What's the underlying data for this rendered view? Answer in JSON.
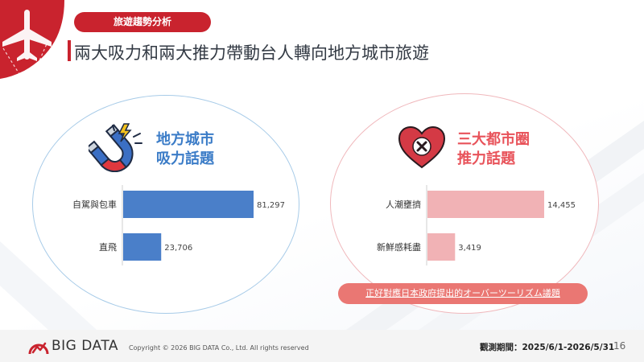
{
  "header": {
    "tag": "旅遊趨勢分析",
    "title": "兩大吸力和兩大推力帶動台人轉向地方城市旅遊"
  },
  "left_panel": {
    "heading_line1": "地方城市",
    "heading_line2": "吸力話題",
    "icon": "magnet-icon",
    "color": "#4a7fc9"
  },
  "right_panel": {
    "heading_line1": "三大都市圈",
    "heading_line2": "推力話題",
    "icon": "heart-x-icon",
    "color": "#f1b2b5"
  },
  "chart_data": [
    {
      "type": "bar",
      "orientation": "horizontal",
      "categories": [
        "自駕與包車",
        "直飛"
      ],
      "values": [
        81297,
        23706
      ],
      "value_labels": [
        "81,297",
        "23,706"
      ],
      "title": "",
      "xlabel": "",
      "ylabel": ""
    },
    {
      "type": "bar",
      "orientation": "horizontal",
      "categories": [
        "人潮壅擠",
        "新鮮感耗盡"
      ],
      "values": [
        14455,
        3419
      ],
      "value_labels": [
        "14,455",
        "3,419"
      ],
      "title": "",
      "xlabel": "",
      "ylabel": ""
    }
  ],
  "note": "正好對應日本政府提出的オーバーツーリズム議題",
  "footer": {
    "logo": "BIG DATA",
    "copyright": "Copyright © 2026 BIG DATA Co., Ltd. All rights reserved",
    "period": "觀測期間：2025/6/1-2026/5/31",
    "page": "16"
  },
  "colors": {
    "brand_red": "#c9232e",
    "left_accent": "#3b7cc7",
    "right_accent": "#e8535a"
  }
}
